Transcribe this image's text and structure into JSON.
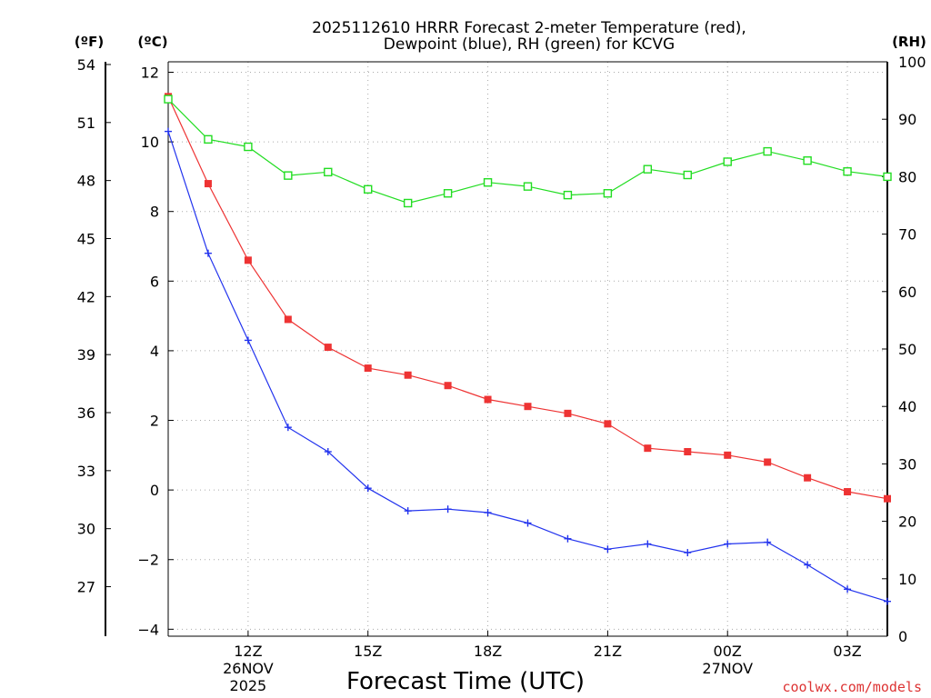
{
  "chart_data": {
    "type": "line",
    "title": [
      "2025112610 HRRR Forecast 2-meter Temperature (red),",
      "Dewpoint (blue), RH (green) for KCVG"
    ],
    "xlabel": "Forecast Time (UTC)",
    "units": {
      "f": "(ºF)",
      "c": "(ºC)",
      "rh": "(RH)"
    },
    "x_hours": [
      10,
      11,
      12,
      13,
      14,
      15,
      16,
      17,
      18,
      19,
      20,
      21,
      22,
      23,
      24,
      25,
      26,
      27,
      28
    ],
    "xlim": [
      10,
      28
    ],
    "x_ticks": [
      {
        "hour": 12,
        "label": "12Z",
        "sub1": "26NOV",
        "sub2": "2025"
      },
      {
        "hour": 15,
        "label": "15Z",
        "sub1": "",
        "sub2": ""
      },
      {
        "hour": 18,
        "label": "18Z",
        "sub1": "",
        "sub2": ""
      },
      {
        "hour": 21,
        "label": "21Z",
        "sub1": "",
        "sub2": ""
      },
      {
        "hour": 24,
        "label": "00Z",
        "sub1": "27NOV",
        "sub2": ""
      },
      {
        "hour": 27,
        "label": "03Z",
        "sub1": "",
        "sub2": ""
      }
    ],
    "ylim_c": [
      -4.2,
      12.3
    ],
    "ylim_rh": [
      0,
      100
    ],
    "y_ticks_c": [
      {
        "v": 12,
        "label": "12"
      },
      {
        "v": 10,
        "label": "10"
      },
      {
        "v": 8,
        "label": "8"
      },
      {
        "v": 6,
        "label": "6"
      },
      {
        "v": 4,
        "label": "4"
      },
      {
        "v": 2,
        "label": "2"
      },
      {
        "v": 0,
        "label": "0"
      },
      {
        "v": -2,
        "label": "−2"
      },
      {
        "v": -4,
        "label": "−4"
      }
    ],
    "y_ticks_f": [
      {
        "v": 54,
        "label": "54"
      },
      {
        "v": 51,
        "label": "51"
      },
      {
        "v": 48,
        "label": "48"
      },
      {
        "v": 45,
        "label": "45"
      },
      {
        "v": 42,
        "label": "42"
      },
      {
        "v": 39,
        "label": "39"
      },
      {
        "v": 36,
        "label": "36"
      },
      {
        "v": 33,
        "label": "33"
      },
      {
        "v": 30,
        "label": "30"
      },
      {
        "v": 27,
        "label": "27"
      }
    ],
    "y_ticks_rh": [
      {
        "v": 100,
        "label": "100"
      },
      {
        "v": 90,
        "label": "90"
      },
      {
        "v": 80,
        "label": "80"
      },
      {
        "v": 70,
        "label": "70"
      },
      {
        "v": 60,
        "label": "60"
      },
      {
        "v": 50,
        "label": "50"
      },
      {
        "v": 40,
        "label": "40"
      },
      {
        "v": 30,
        "label": "30"
      },
      {
        "v": 20,
        "label": "20"
      },
      {
        "v": 10,
        "label": "10"
      },
      {
        "v": 0,
        "label": "0"
      }
    ],
    "series": [
      {
        "name": "Temperature",
        "axis": "c",
        "color": "#ee3333",
        "marker": "filled-square",
        "values": [
          11.3,
          8.8,
          6.6,
          4.9,
          4.1,
          3.5,
          3.3,
          3.0,
          2.6,
          2.4,
          2.2,
          1.9,
          1.2,
          1.1,
          1.0,
          0.8,
          0.35,
          -0.05,
          -0.25
        ]
      },
      {
        "name": "Dewpoint",
        "axis": "c",
        "color": "#2233ee",
        "marker": "plus",
        "values": [
          10.3,
          6.8,
          4.3,
          1.8,
          1.1,
          0.05,
          -0.6,
          -0.55,
          -0.65,
          -0.95,
          -1.4,
          -1.7,
          -1.55,
          -1.8,
          -1.55,
          -1.5,
          -2.15,
          -2.85,
          -3.2
        ]
      },
      {
        "name": "RH",
        "axis": "rh",
        "color": "#22dd22",
        "marker": "open-square",
        "values": [
          93.5,
          86.5,
          85.2,
          80.2,
          80.8,
          77.8,
          75.4,
          77.1,
          79.0,
          78.3,
          76.8,
          77.1,
          81.3,
          80.3,
          82.6,
          84.4,
          82.8,
          80.9,
          80.0
        ]
      }
    ]
  },
  "credit": {
    "text": "coolwx.com/models",
    "color": "#dd3333"
  }
}
